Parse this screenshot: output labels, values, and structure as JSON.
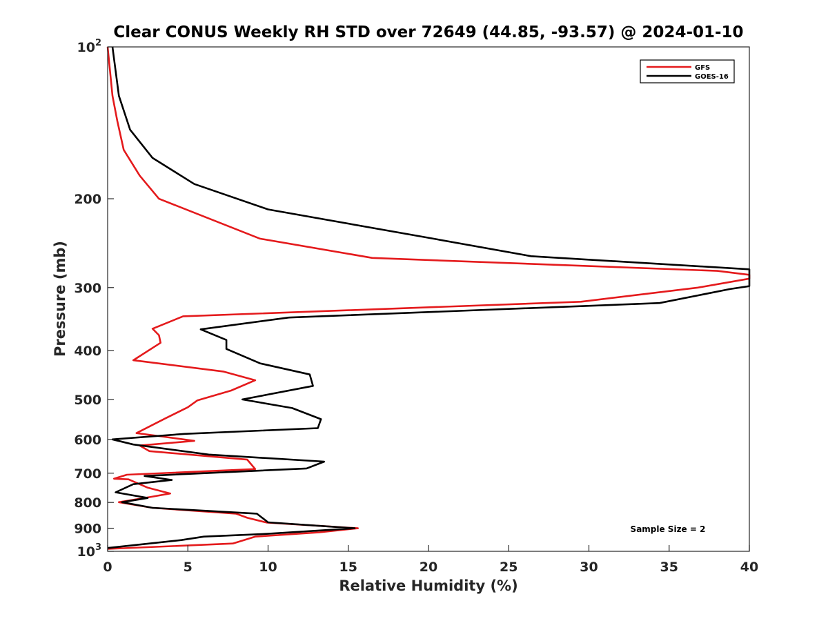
{
  "chart_data": {
    "type": "line",
    "title": "Clear CONUS Weekly RH STD over 72649 (44.85, -93.57) @ 2024-01-10",
    "xlabel": "Relative Humidity (%)",
    "ylabel": "Pressure (mb)",
    "xlim": [
      0,
      40
    ],
    "ylim": [
      100,
      1000
    ],
    "y_scale": "log",
    "y_reversed": true,
    "grid": false,
    "legend_position": "top-right",
    "x_ticks": [
      0,
      5,
      10,
      15,
      20,
      25,
      30,
      35,
      40
    ],
    "x_tick_labels": [
      "0",
      "5",
      "10",
      "15",
      "20",
      "25",
      "30",
      "35",
      "40"
    ],
    "y_ticks": [
      100,
      200,
      300,
      400,
      500,
      600,
      700,
      800,
      900,
      1000
    ],
    "y_tick_labels": [
      {
        "base": "10",
        "exp": "2"
      },
      {
        "base": "200",
        "exp": ""
      },
      {
        "base": "300",
        "exp": ""
      },
      {
        "base": "400",
        "exp": ""
      },
      {
        "base": "500",
        "exp": ""
      },
      {
        "base": "600",
        "exp": ""
      },
      {
        "base": "700",
        "exp": ""
      },
      {
        "base": "800",
        "exp": ""
      },
      {
        "base": "900",
        "exp": ""
      },
      {
        "base": "10",
        "exp": "3"
      }
    ],
    "annotation": "Sample Size = 2",
    "series": [
      {
        "name": "GFS",
        "color": "#e41a1c",
        "points": [
          [
            0.0,
            100
          ],
          [
            0.3,
            125
          ],
          [
            0.6,
            140
          ],
          [
            1.0,
            160
          ],
          [
            2.0,
            180
          ],
          [
            3.2,
            200
          ],
          [
            9.5,
            240
          ],
          [
            16.5,
            262
          ],
          [
            38.0,
            278
          ],
          [
            40.0,
            283
          ],
          [
            40.0,
            288
          ],
          [
            36.8,
            300
          ],
          [
            29.5,
            320
          ],
          [
            4.7,
            342
          ],
          [
            2.8,
            362
          ],
          [
            3.2,
            373
          ],
          [
            3.3,
            386
          ],
          [
            1.6,
            418
          ],
          [
            7.2,
            440
          ],
          [
            9.2,
            458
          ],
          [
            7.7,
            480
          ],
          [
            5.6,
            502
          ],
          [
            5.0,
            518
          ],
          [
            3.6,
            545
          ],
          [
            1.8,
            583
          ],
          [
            3.2,
            591
          ],
          [
            5.4,
            604
          ],
          [
            2.0,
            617
          ],
          [
            2.6,
            633
          ],
          [
            8.7,
            658
          ],
          [
            9.2,
            687
          ],
          [
            1.2,
            705
          ],
          [
            0.4,
            718
          ],
          [
            1.3,
            720
          ],
          [
            2.5,
            748
          ],
          [
            3.9,
            768
          ],
          [
            2.7,
            780
          ],
          [
            0.7,
            799
          ],
          [
            2.8,
            820
          ],
          [
            8.0,
            842
          ],
          [
            8.7,
            858
          ],
          [
            9.9,
            877
          ],
          [
            15.6,
            900
          ],
          [
            13.2,
            917
          ],
          [
            9.2,
            935
          ],
          [
            7.8,
            965
          ],
          [
            0.0,
            989
          ]
        ]
      },
      {
        "name": "GOES-16",
        "color": "#000000",
        "points": [
          [
            0.3,
            100
          ],
          [
            0.7,
            125
          ],
          [
            1.4,
            146
          ],
          [
            2.8,
            166
          ],
          [
            5.4,
            187
          ],
          [
            10.0,
            210
          ],
          [
            20.3,
            240
          ],
          [
            26.4,
            260
          ],
          [
            40.0,
            276
          ],
          [
            40.0,
            298
          ],
          [
            38.8,
            302
          ],
          [
            34.4,
            322
          ],
          [
            11.3,
            344
          ],
          [
            5.8,
            363
          ],
          [
            7.4,
            381
          ],
          [
            7.4,
            397
          ],
          [
            9.5,
            424
          ],
          [
            12.6,
            446
          ],
          [
            12.8,
            470
          ],
          [
            8.4,
            500
          ],
          [
            11.5,
            520
          ],
          [
            13.3,
            547
          ],
          [
            13.1,
            570
          ],
          [
            4.8,
            585
          ],
          [
            0.3,
            600
          ],
          [
            1.6,
            614
          ],
          [
            6.3,
            643
          ],
          [
            13.5,
            664
          ],
          [
            12.4,
            685
          ],
          [
            2.3,
            709
          ],
          [
            4.0,
            722
          ],
          [
            1.6,
            736
          ],
          [
            0.5,
            764
          ],
          [
            2.5,
            784
          ],
          [
            0.9,
            799
          ],
          [
            2.8,
            820
          ],
          [
            9.3,
            842
          ],
          [
            10.0,
            876
          ],
          [
            15.4,
            900
          ],
          [
            10.0,
            923
          ],
          [
            6.0,
            935
          ],
          [
            4.6,
            950
          ],
          [
            0.0,
            985
          ]
        ]
      }
    ]
  }
}
